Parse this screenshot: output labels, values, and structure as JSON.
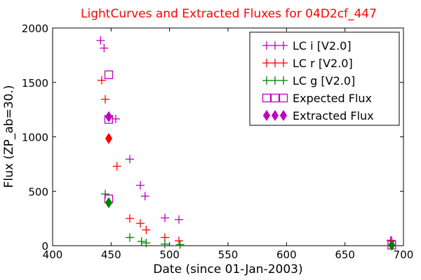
{
  "chart_data": {
    "type": "scatter",
    "title": "LightCurves and Extracted Fluxes for 04D2cf_447",
    "xlabel": "Date (since 01-Jan-2003)",
    "ylabel": "Flux (ZP_ab=30.)",
    "xlim": [
      400,
      700
    ],
    "ylim": [
      0,
      2000
    ],
    "x_ticks": [
      400,
      450,
      500,
      550,
      600,
      650,
      700
    ],
    "y_ticks": [
      0,
      500,
      1000,
      1500,
      2000
    ],
    "grid": false,
    "legend_position": "top-right",
    "title_color": "#ff0000",
    "series": [
      {
        "name": "LC i [V2.0]",
        "marker": "plus",
        "color": "#bf00bf",
        "points": [
          {
            "x": 441,
            "y": 1885
          },
          {
            "x": 444,
            "y": 1815
          },
          {
            "x": 454,
            "y": 1165
          },
          {
            "x": 466,
            "y": 795
          },
          {
            "x": 475,
            "y": 555
          },
          {
            "x": 479,
            "y": 455
          },
          {
            "x": 496,
            "y": 255
          },
          {
            "x": 508,
            "y": 240
          },
          {
            "x": 689,
            "y": 50
          }
        ]
      },
      {
        "name": "LC r [V2.0]",
        "marker": "plus",
        "color": "#ff0000",
        "points": [
          {
            "x": 442,
            "y": 1520
          },
          {
            "x": 445,
            "y": 1345
          },
          {
            "x": 455,
            "y": 730
          },
          {
            "x": 466,
            "y": 250
          },
          {
            "x": 475,
            "y": 205
          },
          {
            "x": 480,
            "y": 145
          },
          {
            "x": 496,
            "y": 75
          },
          {
            "x": 508,
            "y": 45
          },
          {
            "x": 690,
            "y": 45
          }
        ]
      },
      {
        "name": "LC g [V2.0]",
        "marker": "plus",
        "color": "#008000",
        "points": [
          {
            "x": 445,
            "y": 475
          },
          {
            "x": 466,
            "y": 75
          },
          {
            "x": 476,
            "y": 40
          },
          {
            "x": 480,
            "y": 25
          },
          {
            "x": 496,
            "y": 15
          },
          {
            "x": 509,
            "y": 10
          },
          {
            "x": 690,
            "y": 5
          }
        ]
      },
      {
        "name": "Expected Flux",
        "marker": "square",
        "color": "#bf00bf",
        "points": [
          {
            "x": 448,
            "y": 1570
          },
          {
            "x": 448,
            "y": 1160
          },
          {
            "x": 448,
            "y": 430
          },
          {
            "x": 690,
            "y": 5
          }
        ]
      },
      {
        "name": "Extracted Flux",
        "marker": "diamond",
        "points": [
          {
            "x": 448,
            "y": 1185,
            "color": "#bf00bf"
          },
          {
            "x": 448,
            "y": 985,
            "color": "#ff0000"
          },
          {
            "x": 448,
            "y": 395,
            "color": "#008000"
          },
          {
            "x": 690,
            "y": 5,
            "color": "#008000"
          }
        ]
      }
    ]
  }
}
